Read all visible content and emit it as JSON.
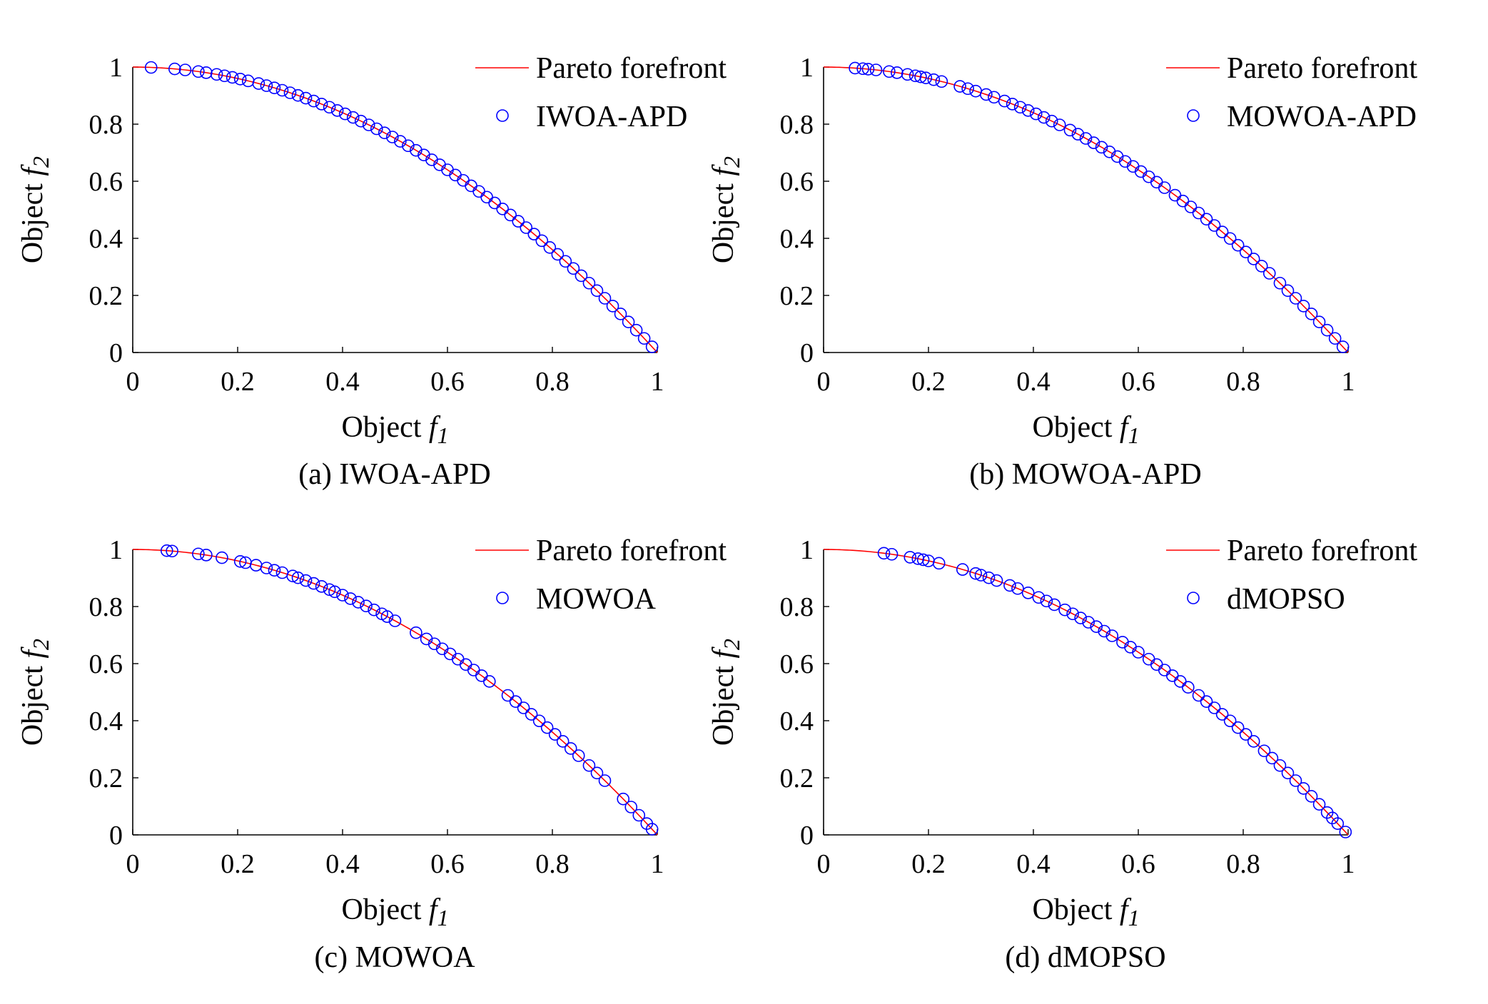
{
  "figure": {
    "legend_line_label": "Pareto forefront",
    "line_color": "#ff0000",
    "marker_color": "#0000ff"
  },
  "chart_data": [
    {
      "type": "scatter",
      "caption": "(a) IWOA-APD",
      "series_name": "IWOA-APD",
      "xlabel": "Object f1",
      "ylabel": "Object f2",
      "xlim": [
        0,
        1
      ],
      "ylim": [
        0,
        1
      ],
      "xticks": [
        "0",
        "0.2",
        "0.4",
        "0.6",
        "0.8",
        "1"
      ],
      "yticks": [
        "0",
        "0.2",
        "0.4",
        "0.6",
        "0.8",
        "1"
      ],
      "legend_position": "top-right",
      "pareto_front": "f2 = 1 - f1^2",
      "points_x": [
        0.035,
        0.08,
        0.1,
        0.125,
        0.14,
        0.16,
        0.175,
        0.19,
        0.205,
        0.22,
        0.24,
        0.255,
        0.27,
        0.285,
        0.3,
        0.315,
        0.33,
        0.345,
        0.36,
        0.375,
        0.39,
        0.405,
        0.42,
        0.435,
        0.45,
        0.465,
        0.48,
        0.495,
        0.51,
        0.525,
        0.54,
        0.555,
        0.57,
        0.585,
        0.6,
        0.615,
        0.63,
        0.645,
        0.66,
        0.675,
        0.69,
        0.705,
        0.72,
        0.735,
        0.75,
        0.765,
        0.78,
        0.795,
        0.81,
        0.825,
        0.84,
        0.855,
        0.87,
        0.885,
        0.9,
        0.915,
        0.93,
        0.945,
        0.96,
        0.975,
        0.99
      ]
    },
    {
      "type": "scatter",
      "caption": "(b) MOWOA-APD",
      "series_name": "MOWOA-APD",
      "xlabel": "Object f1",
      "ylabel": "Object f2",
      "xlim": [
        0,
        1
      ],
      "ylim": [
        0,
        1
      ],
      "xticks": [
        "0",
        "0.2",
        "0.4",
        "0.6",
        "0.8",
        "1"
      ],
      "yticks": [
        "0",
        "0.2",
        "0.4",
        "0.6",
        "0.8",
        "1"
      ],
      "legend_position": "top-right",
      "pareto_front": "f2 = 1 - f1^2",
      "points_x": [
        0.06,
        0.075,
        0.085,
        0.1,
        0.125,
        0.14,
        0.16,
        0.175,
        0.185,
        0.195,
        0.21,
        0.225,
        0.26,
        0.275,
        0.29,
        0.31,
        0.325,
        0.345,
        0.36,
        0.375,
        0.39,
        0.405,
        0.42,
        0.435,
        0.45,
        0.47,
        0.485,
        0.5,
        0.515,
        0.53,
        0.545,
        0.56,
        0.575,
        0.59,
        0.605,
        0.62,
        0.635,
        0.65,
        0.67,
        0.685,
        0.7,
        0.715,
        0.73,
        0.745,
        0.76,
        0.775,
        0.79,
        0.805,
        0.82,
        0.835,
        0.85,
        0.87,
        0.885,
        0.9,
        0.915,
        0.93,
        0.945,
        0.96,
        0.975,
        0.99
      ]
    },
    {
      "type": "scatter",
      "caption": "(c) MOWOA",
      "series_name": "MOWOA",
      "xlabel": "Object f1",
      "ylabel": "Object f2",
      "xlim": [
        0,
        1
      ],
      "ylim": [
        0,
        1
      ],
      "xticks": [
        "0",
        "0.2",
        "0.4",
        "0.6",
        "0.8",
        "1"
      ],
      "yticks": [
        "0",
        "0.2",
        "0.4",
        "0.6",
        "0.8",
        "1"
      ],
      "legend_position": "top-right",
      "pareto_front": "f2 = 1 - f1^2",
      "points_x": [
        0.065,
        0.075,
        0.125,
        0.14,
        0.17,
        0.205,
        0.215,
        0.235,
        0.255,
        0.27,
        0.285,
        0.305,
        0.315,
        0.33,
        0.345,
        0.36,
        0.375,
        0.385,
        0.4,
        0.415,
        0.43,
        0.445,
        0.46,
        0.475,
        0.485,
        0.5,
        0.54,
        0.56,
        0.575,
        0.59,
        0.605,
        0.62,
        0.635,
        0.65,
        0.665,
        0.68,
        0.715,
        0.73,
        0.745,
        0.76,
        0.775,
        0.79,
        0.805,
        0.82,
        0.835,
        0.85,
        0.87,
        0.885,
        0.9,
        0.935,
        0.95,
        0.965,
        0.98,
        0.99
      ]
    },
    {
      "type": "scatter",
      "caption": "(d) dMOPSO",
      "series_name": "dMOPSO",
      "xlabel": "Object f1",
      "ylabel": "Object f2",
      "xlim": [
        0,
        1
      ],
      "ylim": [
        0,
        1
      ],
      "xticks": [
        "0",
        "0.2",
        "0.4",
        "0.6",
        "0.8",
        "1"
      ],
      "yticks": [
        "0",
        "0.2",
        "0.4",
        "0.6",
        "0.8",
        "1"
      ],
      "legend_position": "top-right",
      "pareto_front": "f2 = 1 - f1^2",
      "points_x": [
        0.115,
        0.13,
        0.165,
        0.18,
        0.19,
        0.2,
        0.22,
        0.265,
        0.29,
        0.3,
        0.315,
        0.33,
        0.355,
        0.37,
        0.39,
        0.41,
        0.425,
        0.44,
        0.46,
        0.475,
        0.49,
        0.505,
        0.52,
        0.535,
        0.55,
        0.57,
        0.585,
        0.6,
        0.62,
        0.635,
        0.65,
        0.665,
        0.68,
        0.695,
        0.715,
        0.73,
        0.745,
        0.76,
        0.775,
        0.79,
        0.805,
        0.82,
        0.84,
        0.855,
        0.87,
        0.885,
        0.9,
        0.915,
        0.93,
        0.945,
        0.96,
        0.97,
        0.98,
        0.995
      ]
    }
  ]
}
